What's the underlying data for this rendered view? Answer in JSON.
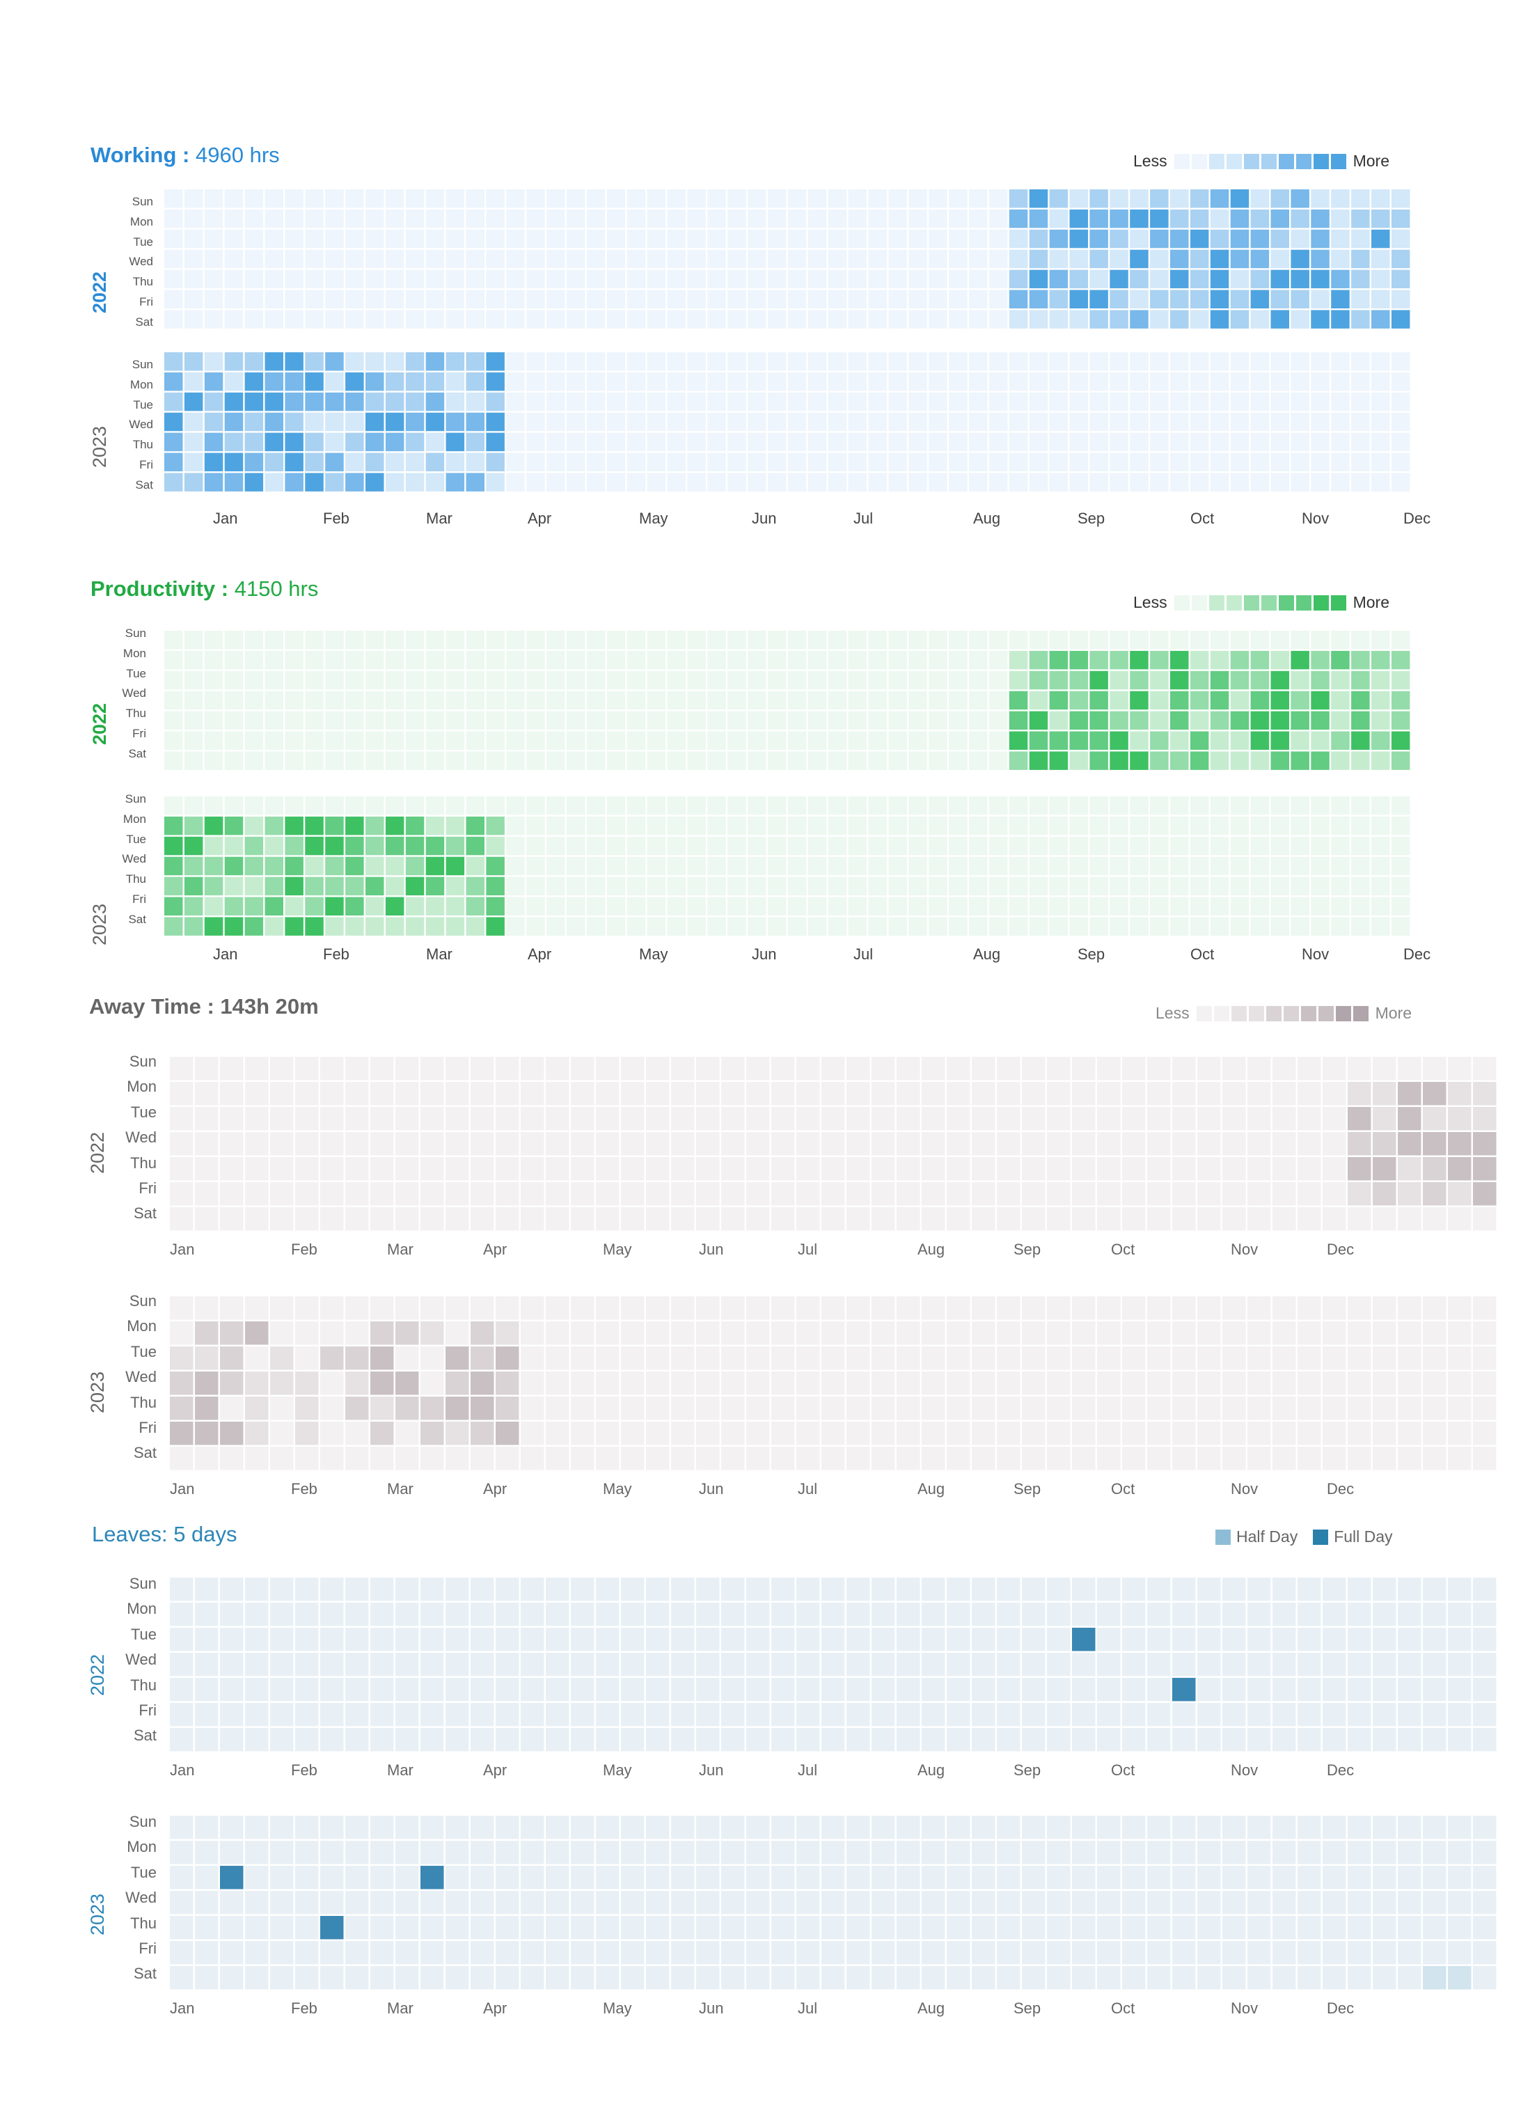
{
  "days": [
    "Sun",
    "Mon",
    "Tue",
    "Wed",
    "Thu",
    "Fri",
    "Sat"
  ],
  "months": [
    "Jan",
    "Feb",
    "Mar",
    "Apr",
    "May",
    "Jun",
    "Jul",
    "Aug",
    "Sep",
    "Oct",
    "Nov",
    "Dec"
  ],
  "years": [
    "2022",
    "2023"
  ],
  "legend": {
    "less": "Less",
    "more": "More",
    "half_day": "Half Day",
    "full_day": "Full Day"
  },
  "working": {
    "label": "Working :",
    "value": "4960 hrs",
    "color": "#2a8ad6",
    "palette": [
      "#eef5fc",
      "#d3e8f8",
      "#a9d1f1",
      "#78b8ea",
      "#4ea4e0"
    ]
  },
  "productivity": {
    "label": "Productivity :",
    "value": "4150 hrs",
    "color": "#22aa44",
    "palette": [
      "#edf8f0",
      "#c6ecd0",
      "#94dcaa",
      "#62cc82",
      "#3ec163"
    ]
  },
  "away": {
    "label": "Away Time :",
    "value": "143h 20m",
    "color": "#666666",
    "palette": [
      "#f3f1f2",
      "#e6e2e4",
      "#d9d3d6",
      "#c9c0c4",
      "#b0a5aa"
    ]
  },
  "leaves": {
    "label": "Leaves:",
    "value": "5 days",
    "color": "#2c86b8",
    "base": "#e8f0f5",
    "half": "#8dbdd6",
    "full": "#3a87b3"
  }
}
